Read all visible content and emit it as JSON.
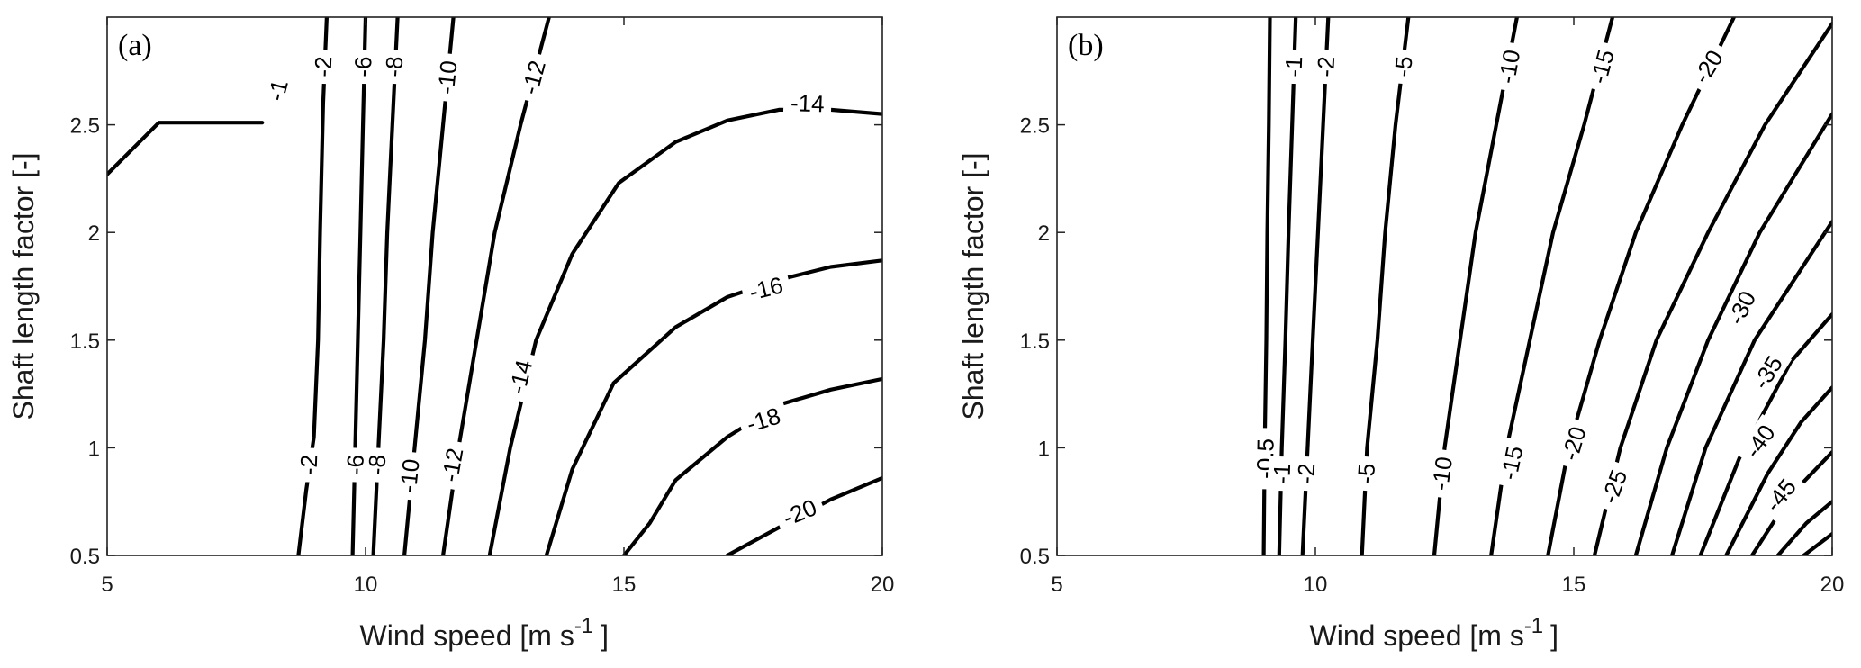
{
  "chart_data": [
    {
      "type": "contour",
      "panel_label": "(a)",
      "xlabel": "Wind speed [m  s",
      "xlabel_sup": "-1",
      "xlabel_end": "]",
      "ylabel": "Shaft length factor [-]",
      "xlim": [
        5,
        20
      ],
      "ylim": [
        0.5,
        3.0
      ],
      "x_ticks": [
        5,
        10,
        15,
        20
      ],
      "y_ticks": [
        0.5,
        1,
        1.5,
        2,
        2.5
      ],
      "x_tick_labels": [
        "5",
        "10",
        "15",
        "20"
      ],
      "y_tick_labels": [
        "0.5",
        "1",
        "1.5",
        "2",
        "2.5"
      ],
      "grid": false,
      "contours": [
        {
          "level": "-1",
          "points": [
            [
              5,
              2.27
            ],
            [
              6,
              2.51
            ],
            [
              8.0,
              2.51
            ]
          ],
          "labels": [
            {
              "text": "-1",
              "x": 8.3,
              "y": 2.66,
              "angle": -75
            }
          ]
        },
        {
          "level": "-2",
          "points": [
            [
              8.7,
              0.5
            ],
            [
              8.85,
              0.8
            ],
            [
              9.0,
              1.05
            ],
            [
              9.08,
              1.5
            ],
            [
              9.12,
              2.0
            ],
            [
              9.18,
              2.6
            ],
            [
              9.25,
              3.0
            ]
          ],
          "labels": [
            {
              "text": "-2",
              "x": 9.18,
              "y": 2.77,
              "angle": -88
            },
            {
              "text": "-2",
              "x": 8.9,
              "y": 0.92,
              "angle": -88
            }
          ]
        },
        {
          "level": "-6",
          "points": [
            [
              9.75,
              0.5
            ],
            [
              9.8,
              1.0
            ],
            [
              9.85,
              1.5
            ],
            [
              9.9,
              2.0
            ],
            [
              9.95,
              2.5
            ],
            [
              10.0,
              3.0
            ]
          ],
          "labels": [
            {
              "text": "-6",
              "x": 9.95,
              "y": 2.77,
              "angle": -88
            },
            {
              "text": "-6",
              "x": 9.8,
              "y": 0.92,
              "angle": -88
            }
          ]
        },
        {
          "level": "-8",
          "points": [
            [
              10.15,
              0.5
            ],
            [
              10.25,
              1.0
            ],
            [
              10.35,
              1.5
            ],
            [
              10.42,
              2.0
            ],
            [
              10.52,
              2.5
            ],
            [
              10.62,
              3.0
            ]
          ],
          "labels": [
            {
              "text": "-8",
              "x": 10.55,
              "y": 2.77,
              "angle": -86
            },
            {
              "text": "-8",
              "x": 10.22,
              "y": 0.92,
              "angle": -86
            }
          ]
        },
        {
          "level": "-10",
          "points": [
            [
              10.75,
              0.5
            ],
            [
              10.95,
              1.0
            ],
            [
              11.15,
              1.5
            ],
            [
              11.3,
              2.0
            ],
            [
              11.5,
              2.5
            ],
            [
              11.7,
              3.0
            ]
          ],
          "labels": [
            {
              "text": "-10",
              "x": 11.58,
              "y": 2.72,
              "angle": -84
            },
            {
              "text": "-10",
              "x": 10.85,
              "y": 0.87,
              "angle": -84
            }
          ]
        },
        {
          "level": "-12",
          "points": [
            [
              11.5,
              0.5
            ],
            [
              11.8,
              1.0
            ],
            [
              12.15,
              1.5
            ],
            [
              12.5,
              2.0
            ],
            [
              13.0,
              2.5
            ],
            [
              13.55,
              3.0
            ]
          ],
          "labels": [
            {
              "text": "-12",
              "x": 13.25,
              "y": 2.72,
              "angle": -75
            },
            {
              "text": "-12",
              "x": 11.68,
              "y": 0.92,
              "angle": -80
            }
          ]
        },
        {
          "level": "-14",
          "points": [
            [
              12.4,
              0.5
            ],
            [
              12.8,
              1.0
            ],
            [
              13.3,
              1.5
            ],
            [
              14.0,
              1.9
            ],
            [
              14.9,
              2.23
            ],
            [
              16.0,
              2.42
            ],
            [
              17.0,
              2.52
            ],
            [
              18.0,
              2.57
            ],
            [
              19.0,
              2.57
            ],
            [
              20.0,
              2.55
            ]
          ],
          "labels": [
            {
              "text": "-14",
              "x": 18.55,
              "y": 2.6,
              "angle": 2
            },
            {
              "text": "-14",
              "x": 13.0,
              "y": 1.33,
              "angle": -76
            }
          ]
        },
        {
          "level": "-16",
          "points": [
            [
              13.5,
              0.5
            ],
            [
              14.0,
              0.9
            ],
            [
              14.8,
              1.3
            ],
            [
              16.0,
              1.56
            ],
            [
              17.0,
              1.7
            ],
            [
              18.0,
              1.78
            ],
            [
              19.0,
              1.84
            ],
            [
              20.0,
              1.87
            ]
          ],
          "labels": [
            {
              "text": "-16",
              "x": 17.75,
              "y": 1.74,
              "angle": -14
            }
          ]
        },
        {
          "level": "-18",
          "points": [
            [
              15.0,
              0.5
            ],
            [
              15.5,
              0.65
            ],
            [
              16.0,
              0.85
            ],
            [
              17.0,
              1.05
            ],
            [
              18.0,
              1.2
            ],
            [
              19.0,
              1.27
            ],
            [
              20.0,
              1.32
            ]
          ],
          "labels": [
            {
              "text": "-18",
              "x": 17.7,
              "y": 1.13,
              "angle": -17
            }
          ]
        },
        {
          "level": "-20",
          "points": [
            [
              17.0,
              0.5
            ],
            [
              18.0,
              0.63
            ],
            [
              19.0,
              0.76
            ],
            [
              20.0,
              0.86
            ]
          ],
          "labels": [
            {
              "text": "-20",
              "x": 18.4,
              "y": 0.7,
              "angle": -22
            }
          ]
        }
      ]
    },
    {
      "type": "contour",
      "panel_label": "(b)",
      "xlabel": "Wind speed [m  s",
      "xlabel_sup": "-1",
      "xlabel_end": "]",
      "ylabel": "Shaft length factor [-]",
      "xlim": [
        5,
        20
      ],
      "ylim": [
        0.5,
        3.0
      ],
      "x_ticks": [
        5,
        10,
        15,
        20
      ],
      "y_ticks": [
        0.5,
        1,
        1.5,
        2,
        2.5
      ],
      "x_tick_labels": [
        "5",
        "10",
        "15",
        "20"
      ],
      "y_tick_labels": [
        "0.5",
        "1",
        "1.5",
        "2",
        "2.5"
      ],
      "grid": false,
      "contours": [
        {
          "level": "-0.5",
          "points": [
            [
              9.0,
              0.5
            ],
            [
              9.02,
              1.0
            ],
            [
              9.05,
              1.5
            ],
            [
              9.07,
              2.0
            ],
            [
              9.1,
              2.5
            ],
            [
              9.12,
              3.0
            ]
          ],
          "labels": [
            {
              "text": "-0.5",
              "x": 9.03,
              "y": 0.95,
              "angle": -89
            }
          ]
        },
        {
          "level": "-1",
          "points": [
            [
              9.3,
              0.5
            ],
            [
              9.35,
              1.0
            ],
            [
              9.42,
              1.5
            ],
            [
              9.48,
              2.0
            ],
            [
              9.55,
              2.5
            ],
            [
              9.62,
              3.0
            ]
          ],
          "labels": [
            {
              "text": "-1",
              "x": 9.58,
              "y": 2.77,
              "angle": -88
            },
            {
              "text": "-1",
              "x": 9.35,
              "y": 0.88,
              "angle": -88
            }
          ]
        },
        {
          "level": "-2",
          "points": [
            [
              9.75,
              0.5
            ],
            [
              9.85,
              1.0
            ],
            [
              9.95,
              1.5
            ],
            [
              10.05,
              2.0
            ],
            [
              10.15,
              2.5
            ],
            [
              10.25,
              3.0
            ]
          ],
          "labels": [
            {
              "text": "-2",
              "x": 10.2,
              "y": 2.77,
              "angle": -87
            },
            {
              "text": "-2",
              "x": 9.82,
              "y": 0.88,
              "angle": -87
            }
          ]
        },
        {
          "level": "-5",
          "points": [
            [
              10.9,
              0.5
            ],
            [
              11.0,
              1.0
            ],
            [
              11.2,
              1.5
            ],
            [
              11.35,
              2.0
            ],
            [
              11.55,
              2.5
            ],
            [
              11.8,
              3.0
            ]
          ],
          "labels": [
            {
              "text": "-5",
              "x": 11.7,
              "y": 2.77,
              "angle": -85
            },
            {
              "text": "-5",
              "x": 10.98,
              "y": 0.88,
              "angle": -86
            }
          ]
        },
        {
          "level": "-10",
          "points": [
            [
              12.3,
              0.5
            ],
            [
              12.5,
              1.0
            ],
            [
              12.8,
              1.5
            ],
            [
              13.1,
              2.0
            ],
            [
              13.5,
              2.5
            ],
            [
              13.9,
              3.0
            ]
          ],
          "labels": [
            {
              "text": "-10",
              "x": 13.75,
              "y": 2.77,
              "angle": -80
            },
            {
              "text": "-10",
              "x": 12.45,
              "y": 0.88,
              "angle": -82
            }
          ]
        },
        {
          "level": "-15",
          "points": [
            [
              13.4,
              0.5
            ],
            [
              13.7,
              1.0
            ],
            [
              14.15,
              1.5
            ],
            [
              14.6,
              2.0
            ],
            [
              15.2,
              2.5
            ],
            [
              15.75,
              3.0
            ]
          ],
          "labels": [
            {
              "text": "-15",
              "x": 15.55,
              "y": 2.77,
              "angle": -75
            },
            {
              "text": "-15",
              "x": 13.8,
              "y": 0.93,
              "angle": -78
            }
          ]
        },
        {
          "level": "-20",
          "points": [
            [
              14.5,
              0.5
            ],
            [
              14.9,
              1.0
            ],
            [
              15.5,
              1.5
            ],
            [
              16.2,
              2.0
            ],
            [
              17.1,
              2.5
            ],
            [
              18.1,
              3.0
            ]
          ],
          "labels": [
            {
              "text": "-20",
              "x": 17.6,
              "y": 2.77,
              "angle": -58
            },
            {
              "text": "-20",
              "x": 15.0,
              "y": 1.02,
              "angle": -74
            }
          ]
        },
        {
          "level": "-25",
          "points": [
            [
              15.4,
              0.5
            ],
            [
              15.9,
              1.0
            ],
            [
              16.6,
              1.5
            ],
            [
              17.6,
              2.0
            ],
            [
              18.7,
              2.5
            ],
            [
              20.0,
              2.97
            ]
          ],
          "labels": [
            {
              "text": "-25",
              "x": 15.78,
              "y": 0.82,
              "angle": -70
            }
          ]
        },
        {
          "level": "-30",
          "points": [
            [
              16.2,
              0.5
            ],
            [
              16.8,
              1.0
            ],
            [
              17.6,
              1.5
            ],
            [
              18.6,
              2.0
            ],
            [
              20.0,
              2.55
            ]
          ],
          "labels": [
            {
              "text": "-30",
              "x": 18.25,
              "y": 1.65,
              "angle": -64
            }
          ]
        },
        {
          "level": "-35",
          "points": [
            [
              16.9,
              0.5
            ],
            [
              17.55,
              1.0
            ],
            [
              18.5,
              1.5
            ],
            [
              20.0,
              2.05
            ]
          ],
          "labels": [
            {
              "text": "-35",
              "x": 18.75,
              "y": 1.35,
              "angle": -58
            }
          ]
        },
        {
          "level": "-40",
          "points": [
            [
              17.45,
              0.5
            ],
            [
              18.2,
              0.95
            ],
            [
              19.2,
              1.4
            ],
            [
              20.0,
              1.62
            ]
          ],
          "labels": [
            {
              "text": "-40",
              "x": 18.6,
              "y": 1.03,
              "angle": -55
            }
          ]
        },
        {
          "level": "-45",
          "points": [
            [
              17.95,
              0.5
            ],
            [
              18.75,
              0.88
            ],
            [
              19.4,
              1.12
            ],
            [
              20.0,
              1.28
            ]
          ],
          "labels": [
            {
              "text": "-45",
              "x": 19.0,
              "y": 0.78,
              "angle": -52
            }
          ]
        },
        {
          "level": "unlabeled-1",
          "points": [
            [
              18.45,
              0.5
            ],
            [
              19.2,
              0.78
            ],
            [
              20.0,
              0.98
            ]
          ],
          "labels": []
        },
        {
          "level": "unlabeled-2",
          "points": [
            [
              18.95,
              0.5
            ],
            [
              19.5,
              0.65
            ],
            [
              20.0,
              0.75
            ]
          ],
          "labels": []
        },
        {
          "level": "unlabeled-3",
          "points": [
            [
              19.45,
              0.5
            ],
            [
              20.0,
              0.6
            ]
          ],
          "labels": []
        }
      ]
    }
  ]
}
